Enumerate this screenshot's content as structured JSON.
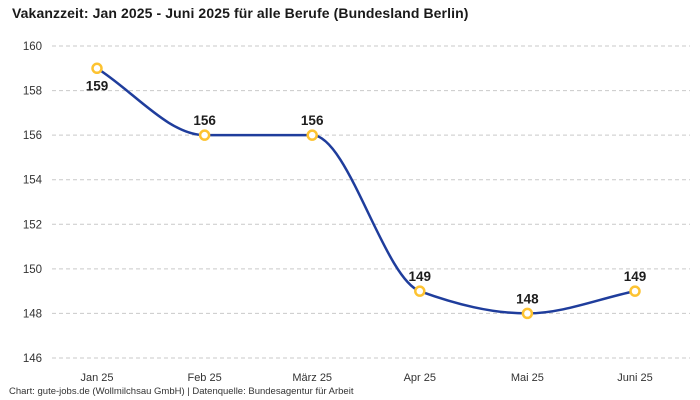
{
  "title": "Vakanzzeit: Jan 2025 - Juni 2025 für alle Berufe (Bundesland Berlin)",
  "footer": "Chart: gute-jobs.de (Wollmilchsau GmbH) | Datenquelle: Bundesagentur für Arbeit",
  "chart_data": {
    "type": "line",
    "title": "Vakanzzeit: Jan 2025 - Juni 2025 für alle Berufe (Bundesland Berlin)",
    "categories": [
      "Jan 25",
      "Feb 25",
      "März 25",
      "Apr 25",
      "Mai 25",
      "Juni 25"
    ],
    "values": [
      159,
      156,
      156,
      149,
      148,
      149
    ],
    "data_labels": [
      "159",
      "156",
      "156",
      "149",
      "148",
      "149"
    ],
    "label_positions": [
      "below",
      "above",
      "above",
      "above",
      "above",
      "above"
    ],
    "xlabel": "",
    "ylabel": "",
    "ylim": [
      146,
      160
    ],
    "yticks": [
      146,
      148,
      150,
      152,
      154,
      156,
      158,
      160
    ],
    "grid": "dashed-horizontal",
    "legend": "none",
    "curve": "monotone",
    "colors": {
      "line": "#1f3d9c",
      "marker_ring": "#fdc331",
      "marker_fill": "#ffffff",
      "gridline": "#c9c9c9",
      "tick_text": "#333333",
      "label_text": "#1d1d1d"
    }
  }
}
